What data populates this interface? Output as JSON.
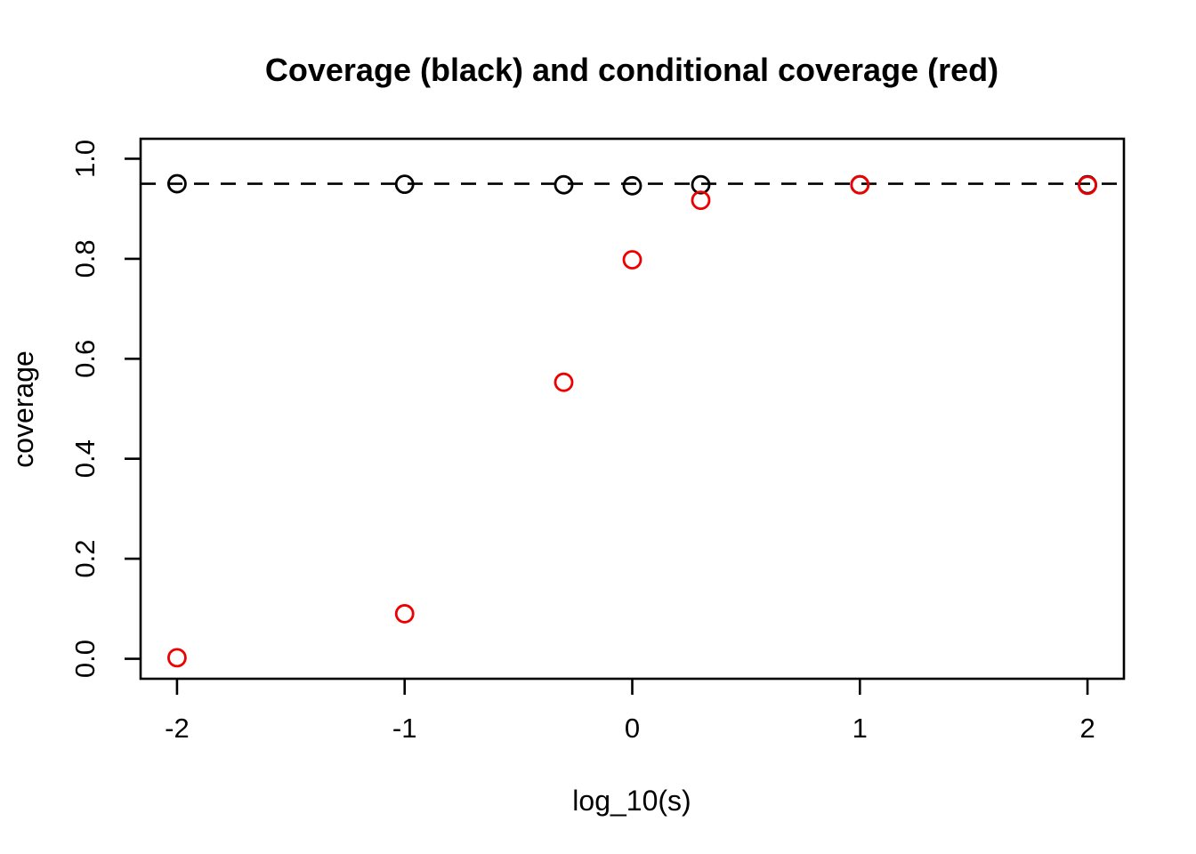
{
  "page": {
    "background_color": "#ffffff"
  },
  "chart_data": {
    "type": "scatter",
    "title": "Coverage (black) and conditional coverage (red)",
    "xlabel": "log_10(s)",
    "ylabel": "coverage",
    "xlim": [
      -2.16,
      2.16
    ],
    "ylim": [
      -0.04,
      1.04
    ],
    "grid": false,
    "x_ticks": {
      "values": [
        -2,
        -1,
        0,
        1,
        2
      ],
      "labels": [
        "-2",
        "-1",
        "0",
        "1",
        "2"
      ]
    },
    "y_ticks": {
      "values": [
        0.0,
        0.2,
        0.4,
        0.6,
        0.8,
        1.0
      ],
      "labels": [
        "0.0",
        "0.2",
        "0.4",
        "0.6",
        "0.8",
        "1.0"
      ]
    },
    "reference_line": {
      "y": 0.95,
      "style": "dashed",
      "color": "#000000"
    },
    "marker": "open-circle",
    "x": [
      -2,
      -1,
      -0.301,
      0,
      0.301,
      1,
      2
    ],
    "series": [
      {
        "name": "coverage",
        "color": "#000000",
        "values": [
          0.95,
          0.949,
          0.948,
          0.946,
          0.948,
          0.948,
          0.948
        ]
      },
      {
        "name": "conditional coverage",
        "color": "#ee0000",
        "values": [
          0.002,
          0.09,
          0.553,
          0.798,
          0.917,
          0.948,
          0.947
        ]
      }
    ],
    "colors": {
      "coverage": "#000000",
      "conditional_coverage": "#ee0000",
      "axis": "#000000"
    }
  }
}
